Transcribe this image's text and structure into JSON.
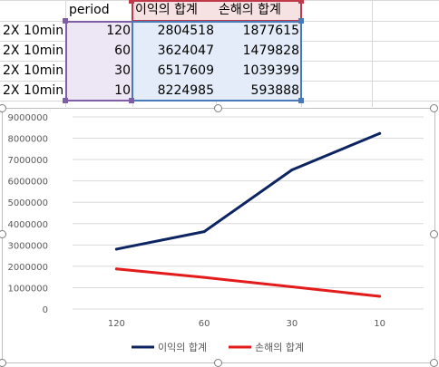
{
  "sheet": {
    "header": {
      "period": "period",
      "profit": "이익의 합계",
      "loss": "손해의 합계"
    },
    "rows": [
      {
        "label": "2X 10min",
        "period": "120",
        "profit": "2804518",
        "loss": "1877615"
      },
      {
        "label": "2X 10min",
        "period": "60",
        "profit": "3624047",
        "loss": "1479828"
      },
      {
        "label": "2X 10min",
        "period": "30",
        "profit": "6517609",
        "loss": "1039399"
      },
      {
        "label": "2X 10min",
        "period": "10",
        "profit": "8224985",
        "loss": "593888"
      }
    ]
  },
  "chart_data": {
    "type": "line",
    "categories": [
      "120",
      "60",
      "30",
      "10"
    ],
    "series": [
      {
        "name": "이익의 합계",
        "values": [
          2804518,
          3624047,
          6517609,
          8224985
        ],
        "color": "#0c2461"
      },
      {
        "name": "손해의 합계",
        "values": [
          1877615,
          1479828,
          1039399,
          593888
        ],
        "color": "#e31b1b"
      }
    ],
    "ylim": [
      0,
      9000000
    ],
    "yticks": [
      "0",
      "1000000",
      "2000000",
      "3000000",
      "4000000",
      "5000000",
      "6000000",
      "7000000",
      "8000000",
      "9000000"
    ],
    "grid": true,
    "legend_position": "bottom"
  }
}
